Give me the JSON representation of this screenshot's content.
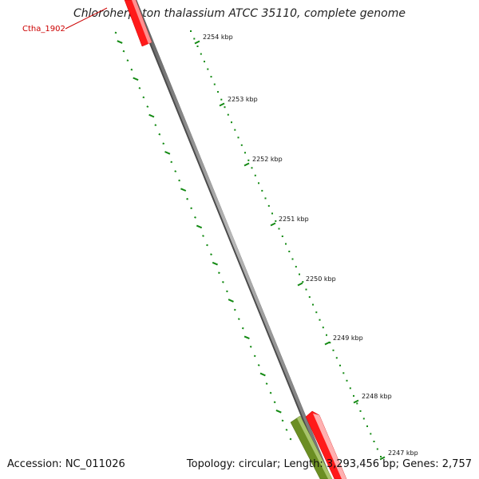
{
  "title": "Chloroherpeton thalassium ATCC 35110, complete genome",
  "footer": {
    "accession": "Accession: NC_011026",
    "summary": "Topology: circular; Length: 3,293,456 bp; Genes: 2,757"
  },
  "scale_ticks": [
    "2254 kbp",
    "2253 kbp",
    "2252 kbp",
    "2251 kbp",
    "2250 kbp",
    "2249 kbp",
    "2248 kbp",
    "2247 kbp"
  ],
  "gene_labels": [
    "Ctha_1902"
  ],
  "colors": {
    "backbone": "#808080",
    "gene_red": "#ff1a1a",
    "gene_green": "#6b8e23",
    "tick_green": "#138a13",
    "label_red": "#cc0000"
  }
}
